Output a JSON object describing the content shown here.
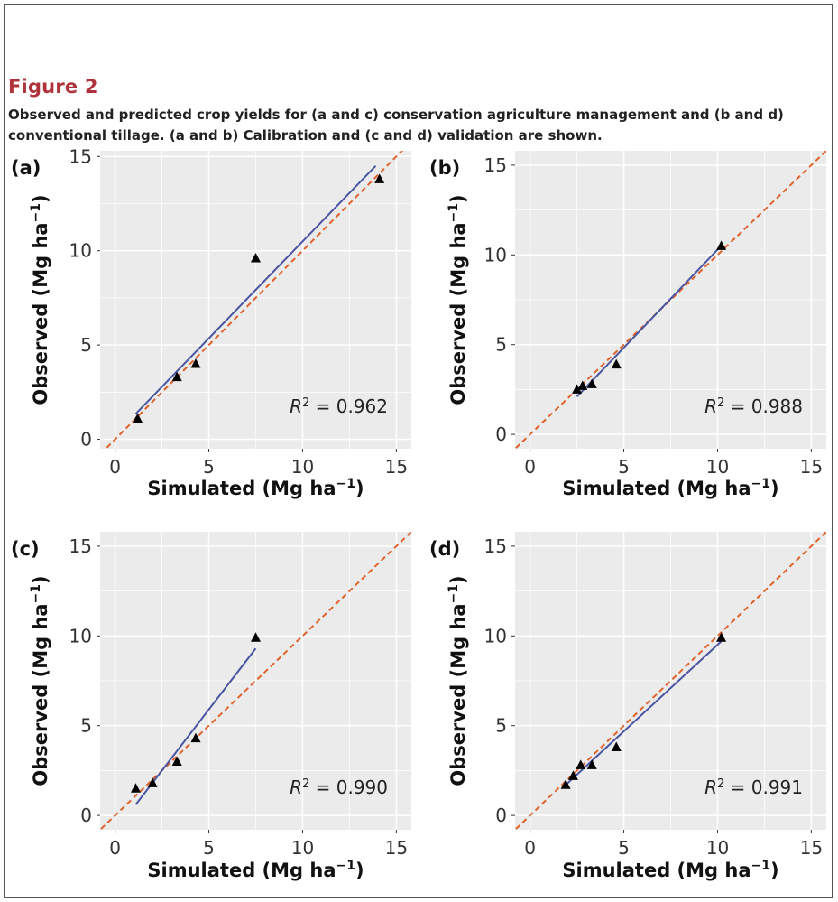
{
  "figure": {
    "title": "Figure 2",
    "caption": "Observed and predicted crop yields for (a and c) conservation agriculture management and (b and d) conventional tillage. (a and b) Calibration and (c and d) validation are shown."
  },
  "colors": {
    "panel_bg": "#ebebeb",
    "grid": "#ffffff",
    "fit_line": "#4a55a2",
    "one_to_one": "#e0622b",
    "point": "#000000",
    "panel_letter": "#111111",
    "axis_text": "#333333"
  },
  "chart_data": [
    {
      "type": "scatter",
      "panel": "(a)",
      "xlabel_main": "Simulated (Mg ha",
      "xlabel_sup": "−1",
      "xlabel_end": ")",
      "ylabel_main": "Observed (Mg ha",
      "ylabel_sup": "−1",
      "ylabel_end": ")",
      "xlim": [
        -0.8,
        15.8
      ],
      "ylim": [
        -0.5,
        15.3
      ],
      "xticks": [
        0,
        5,
        10,
        15
      ],
      "yticks": [
        0,
        5,
        10,
        15
      ],
      "xtick_labels": [
        "0",
        "5",
        "10",
        "15"
      ],
      "ytick_labels": [
        "0",
        "5",
        "10",
        "15"
      ],
      "points": [
        [
          1.2,
          1.1
        ],
        [
          3.3,
          3.3
        ],
        [
          4.3,
          4.0
        ],
        [
          7.5,
          9.6
        ],
        [
          14.1,
          13.8
        ]
      ],
      "fit": [
        [
          1.1,
          1.35
        ],
        [
          13.9,
          14.5
        ]
      ],
      "r2_prefix": "R",
      "r2_sup": "2",
      "r2_value": " = 0.962"
    },
    {
      "type": "scatter",
      "panel": "(b)",
      "xlabel_main": "Simulated (Mg ha",
      "xlabel_sup": "−1",
      "xlabel_end": ")",
      "ylabel_main": "Observed (Mg ha",
      "ylabel_sup": "−1",
      "ylabel_end": ")",
      "xlim": [
        -0.8,
        15.8
      ],
      "ylim": [
        -0.8,
        15.8
      ],
      "xticks": [
        0,
        5,
        10,
        15
      ],
      "yticks": [
        0,
        5,
        10,
        15
      ],
      "xtick_labels": [
        "0",
        "5",
        "10",
        "15"
      ],
      "ytick_labels": [
        "0",
        "5",
        "10",
        "15"
      ],
      "points": [
        [
          2.5,
          2.5
        ],
        [
          2.8,
          2.7
        ],
        [
          3.3,
          2.8
        ],
        [
          4.6,
          3.9
        ],
        [
          10.2,
          10.5
        ]
      ],
      "fit": [
        [
          2.5,
          2.1
        ],
        [
          10.1,
          10.4
        ]
      ],
      "r2_prefix": "R",
      "r2_sup": "2",
      "r2_value": " = 0.988"
    },
    {
      "type": "scatter",
      "panel": "(c)",
      "xlabel_main": "Simulated (Mg ha",
      "xlabel_sup": "−1",
      "xlabel_end": ")",
      "ylabel_main": "Observed (Mg ha",
      "ylabel_sup": "−1",
      "ylabel_end": ")",
      "xlim": [
        -0.8,
        15.8
      ],
      "ylim": [
        -0.8,
        15.8
      ],
      "xticks": [
        0,
        5,
        10,
        15
      ],
      "yticks": [
        0,
        5,
        10,
        15
      ],
      "xtick_labels": [
        "0",
        "5",
        "10",
        "15"
      ],
      "ytick_labels": [
        "0",
        "5",
        "10",
        "15"
      ],
      "points": [
        [
          1.1,
          1.5
        ],
        [
          2.0,
          1.8
        ],
        [
          3.3,
          3.0
        ],
        [
          4.3,
          4.3
        ],
        [
          7.5,
          9.9
        ]
      ],
      "fit": [
        [
          1.1,
          0.6
        ],
        [
          7.5,
          9.3
        ]
      ],
      "r2_prefix": "R",
      "r2_sup": "2",
      "r2_value": " = 0.990"
    },
    {
      "type": "scatter",
      "panel": "(d)",
      "xlabel_main": "Simulated (Mg ha",
      "xlabel_sup": "−1",
      "xlabel_end": ")",
      "ylabel_main": "Observed (Mg ha",
      "ylabel_sup": "−1",
      "ylabel_end": ")",
      "xlim": [
        -0.8,
        15.8
      ],
      "ylim": [
        -0.8,
        15.8
      ],
      "xticks": [
        0,
        5,
        10,
        15
      ],
      "yticks": [
        0,
        5,
        10,
        15
      ],
      "xtick_labels": [
        "0",
        "5",
        "10",
        "15"
      ],
      "ytick_labels": [
        "0",
        "5",
        "10",
        "15"
      ],
      "points": [
        [
          1.9,
          1.7
        ],
        [
          2.3,
          2.2
        ],
        [
          2.7,
          2.8
        ],
        [
          3.3,
          2.8
        ],
        [
          4.6,
          3.8
        ],
        [
          10.2,
          9.9
        ]
      ],
      "fit": [
        [
          1.8,
          1.6
        ],
        [
          10.2,
          9.7
        ]
      ],
      "r2_prefix": "R",
      "r2_sup": "2",
      "r2_value": " = 0.991"
    }
  ]
}
